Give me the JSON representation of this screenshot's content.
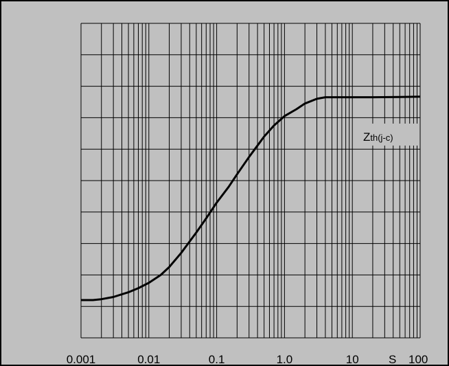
{
  "chart_data": {
    "type": "line",
    "title": "",
    "xlabel": "",
    "ylabel": "",
    "x_scale": "log",
    "xlim": [
      0.001,
      100
    ],
    "y_divisions": 10,
    "grid": true,
    "tick_labels": [
      "0.001",
      "0.01",
      "0.1",
      "1.0",
      "10",
      "100"
    ],
    "x_unit": "S",
    "series": [
      {
        "name": "Zth(j-c)",
        "name_main": "Z",
        "name_sub": "th(j-c)",
        "x": [
          0.001,
          0.0015,
          0.002,
          0.003,
          0.005,
          0.007,
          0.01,
          0.015,
          0.02,
          0.03,
          0.05,
          0.07,
          0.1,
          0.15,
          0.2,
          0.3,
          0.5,
          0.7,
          1.0,
          1.5,
          2.0,
          3.0,
          4.0,
          5.0,
          10,
          20,
          50,
          100
        ],
        "y": [
          0.12,
          0.12,
          0.123,
          0.13,
          0.145,
          0.158,
          0.175,
          0.2,
          0.225,
          0.27,
          0.335,
          0.38,
          0.43,
          0.48,
          0.52,
          0.575,
          0.64,
          0.675,
          0.705,
          0.727,
          0.745,
          0.76,
          0.765,
          0.765,
          0.765,
          0.765,
          0.766,
          0.767
        ]
      }
    ],
    "colors": {
      "background": "#c0c0c0",
      "line": "#000000"
    }
  }
}
